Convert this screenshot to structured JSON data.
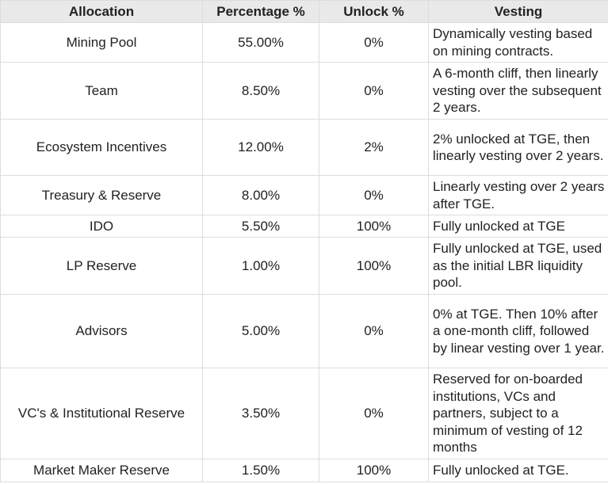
{
  "table": {
    "columns": [
      "Allocation",
      "Percentage %",
      "Unlock %",
      "Vesting"
    ],
    "rows": [
      [
        "Mining Pool",
        "55.00%",
        "0%",
        "Dynamically vesting based on mining contracts."
      ],
      [
        "Team",
        "8.50%",
        "0%",
        "A 6-month cliff, then linearly vesting over the subsequent 2 years."
      ],
      [
        "Ecosystem Incentives",
        "12.00%",
        "2%",
        "2% unlocked at TGE, then linearly vesting over 2 years."
      ],
      [
        "Treasury & Reserve",
        "8.00%",
        "0%",
        "Linearly vesting over 2 years after TGE."
      ],
      [
        "IDO",
        "5.50%",
        "100%",
        "Fully unlocked at TGE"
      ],
      [
        "LP Reserve",
        "1.00%",
        "100%",
        "Fully unlocked at TGE, used as the initial LBR liquidity pool."
      ],
      [
        "Advisors",
        "5.00%",
        "0%",
        "0% at TGE. Then 10% after a one-month cliff, followed by linear vesting over 1 year."
      ],
      [
        "VC's & Institutional Reserve",
        "3.50%",
        "0%",
        "Reserved for on-boarded institutions, VCs and partners, subject to a minimum of vesting of 12 months"
      ],
      [
        "Market Maker Reserve",
        "1.50%",
        "100%",
        "Fully unlocked at TGE."
      ]
    ]
  }
}
